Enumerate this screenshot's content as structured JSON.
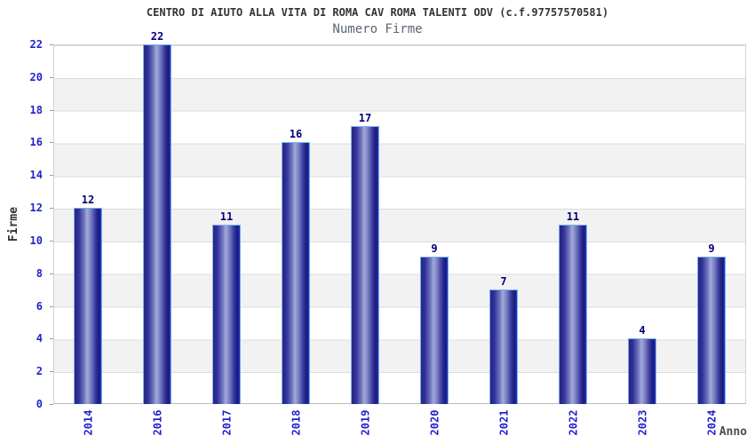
{
  "chart_data": {
    "type": "bar",
    "title": "CENTRO DI AIUTO ALLA VITA DI ROMA CAV ROMA TALENTI ODV (c.f.97757570581)",
    "subtitle": "Numero Firme",
    "xlabel": "Anno",
    "ylabel": "Firme",
    "categories": [
      "2014",
      "2016",
      "2017",
      "2018",
      "2019",
      "2020",
      "2021",
      "2022",
      "2023",
      "2024"
    ],
    "values": [
      12,
      22,
      11,
      16,
      17,
      9,
      7,
      11,
      4,
      9
    ],
    "ylim": [
      0,
      22
    ],
    "ytick_step": 2,
    "grid": "horizontal-bands-alternating",
    "legend_position": "none",
    "colors": {
      "bar_edge_dark": "#1b1b72",
      "bar_center_light": "#a3aad8",
      "bar_border": "#79aff0",
      "tick_label_blue": "#2222cc",
      "value_label_navy": "#00007a",
      "title_text": "#333333",
      "subtitle_text": "#5a6570",
      "band_gray": "#f2f2f2",
      "band_white": "#ffffff",
      "plot_border": "#d3d3d3"
    }
  }
}
